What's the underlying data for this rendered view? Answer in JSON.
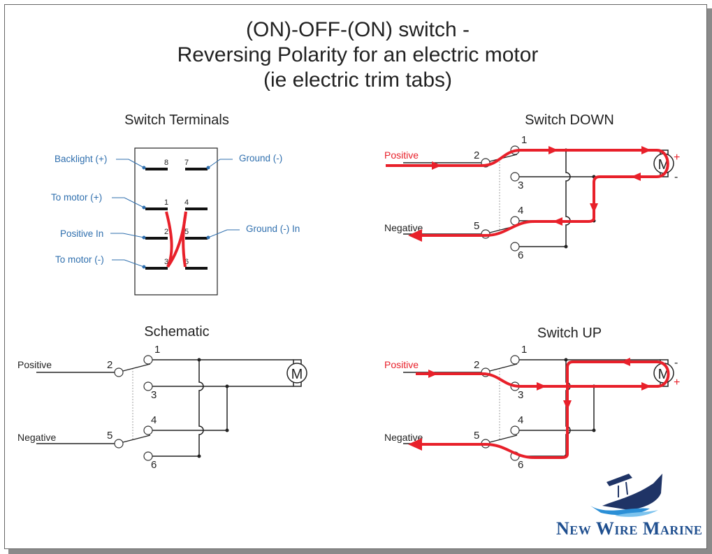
{
  "title": {
    "line1": "(ON)-OFF-(ON) switch -",
    "line2": "Reversing Polarity for an electric motor",
    "line3": "(ie electric trim tabs)"
  },
  "sections": {
    "terminals": "Switch Terminals",
    "schematic": "Schematic",
    "switch_down": "Switch DOWN",
    "switch_up": "Switch UP"
  },
  "terminal_labels": {
    "backlight": "Backlight (+)",
    "ground": "Ground (-)",
    "to_motor_pos": "To motor (+)",
    "positive_in": "Positive In",
    "ground_in": "Ground (-) In",
    "to_motor_neg": "To motor (-)"
  },
  "terminal_numbers": [
    "8",
    "7",
    "1",
    "4",
    "2",
    "5",
    "3",
    "6"
  ],
  "wire_labels": {
    "positive": "Positive",
    "negative": "Negative"
  },
  "motor_label": "M",
  "polarity": {
    "plus": "+",
    "minus": "-"
  },
  "logo": {
    "text": "New Wire Marine"
  },
  "colors": {
    "current": "#e8202a",
    "label_blue": "#2f6fae",
    "wire": "#222222",
    "logo_navy": "#1f3466",
    "logo_wave": "#2b8fd6"
  }
}
